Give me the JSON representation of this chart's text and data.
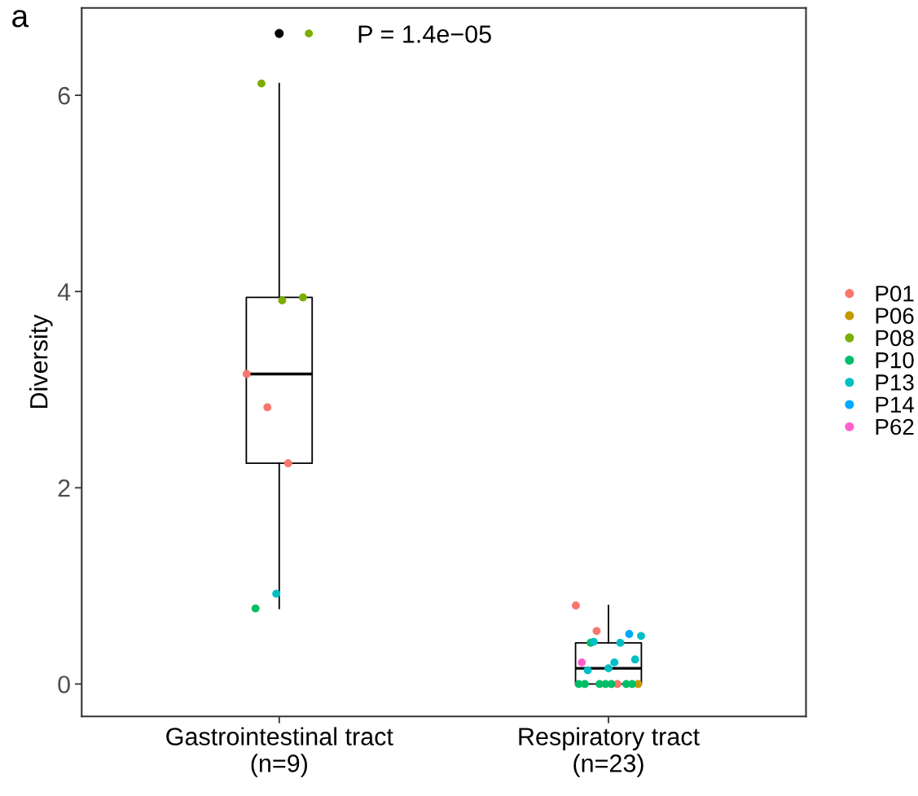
{
  "chart_data": {
    "type": "box",
    "ylabel": "Diversity",
    "categories": [
      "Gastrointestinal tract\n(n=9)",
      "Respiratory tract\n(n=23)"
    ],
    "boxes": [
      {
        "low": 0.77,
        "q1": 2.25,
        "median": 3.16,
        "q3": 3.94,
        "high": 6.12,
        "outliers": [
          6.63
        ]
      },
      {
        "low": 0,
        "q1": 0,
        "median": 0.16,
        "q3": 0.42,
        "high": 0.8
      }
    ],
    "series": [
      {
        "name": "P01",
        "color": "#f8766d",
        "type": "scatter",
        "x": [
          "Gastrointestinal tract\n(n=9)",
          "Gastrointestinal tract\n(n=9)",
          "Gastrointestinal tract\n(n=9)",
          "Respiratory tract\n(n=23)",
          "Respiratory tract\n(n=23)",
          "Respiratory tract\n(n=23)"
        ],
        "values": [
          3.16,
          2.82,
          2.25,
          0.8,
          0.54,
          0
        ]
      },
      {
        "name": "P06",
        "color": "#c49a00",
        "type": "scatter",
        "x": [
          "Respiratory tract\n(n=23)"
        ],
        "values": [
          0
        ]
      },
      {
        "name": "P08",
        "color": "#7cae00",
        "type": "scatter",
        "x": [
          "Gastrointestinal tract\n(n=9)",
          "Gastrointestinal tract\n(n=9)",
          "Gastrointestinal tract\n(n=9)",
          "Gastrointestinal tract\n(n=9)"
        ],
        "values": [
          6.63,
          6.12,
          3.91,
          3.94
        ]
      },
      {
        "name": "P10",
        "color": "#00be67",
        "type": "scatter",
        "x": [
          "Gastrointestinal tract\n(n=9)",
          "Respiratory tract\n(n=23)",
          "Respiratory tract\n(n=23)",
          "Respiratory tract\n(n=23)",
          "Respiratory tract\n(n=23)",
          "Respiratory tract\n(n=23)",
          "Respiratory tract\n(n=23)",
          "Respiratory tract\n(n=23)",
          "Respiratory tract\n(n=23)"
        ],
        "values": [
          0.77,
          0.42,
          0,
          0,
          0,
          0,
          0,
          0,
          0
        ]
      },
      {
        "name": "P13",
        "color": "#00bfc4",
        "type": "scatter",
        "x": [
          "Gastrointestinal tract\n(n=9)",
          "Respiratory tract\n(n=23)",
          "Respiratory tract\n(n=23)",
          "Respiratory tract\n(n=23)",
          "Respiratory tract\n(n=23)",
          "Respiratory tract\n(n=23)",
          "Respiratory tract\n(n=23)",
          "Respiratory tract\n(n=23)"
        ],
        "values": [
          0.92,
          0.42,
          0.49,
          0.43,
          0.22,
          0.25,
          0.14,
          0.16
        ]
      },
      {
        "name": "P14",
        "color": "#00a9ff",
        "type": "scatter",
        "x": [
          "Respiratory tract\n(n=23)"
        ],
        "values": [
          0.51
        ]
      },
      {
        "name": "P62",
        "color": "#ff61cc",
        "type": "scatter",
        "x": [
          "Respiratory tract\n(n=23)"
        ],
        "values": [
          0.22
        ]
      }
    ],
    "ylim": [
      -0.33,
      6.89
    ],
    "yticks": [
      0,
      2,
      4,
      6
    ],
    "grid": false,
    "legend": "right",
    "marker": "circle",
    "annotations": [
      "P = 1.4e−05",
      "a"
    ]
  }
}
